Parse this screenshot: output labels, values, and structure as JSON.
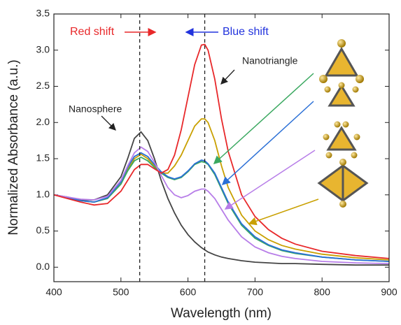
{
  "chart_data": {
    "type": "line",
    "xlabel": "Wavelength (nm)",
    "ylabel": "Normalized Absorbance (a.u.)",
    "annotations": [
      "Red shift",
      "Blue shift",
      "Nanotriangle",
      "Nanosphere"
    ],
    "vlines": [
      528,
      625
    ],
    "xlim": [
      400,
      900
    ],
    "xticks": [
      400,
      500,
      600,
      700,
      800,
      900
    ],
    "ylim": [
      -0.2,
      3.5
    ],
    "yticks": [
      {
        "value": 0,
        "label": "0.0"
      },
      0.5,
      {
        "value": 1,
        "label": "1.0"
      },
      1.5,
      {
        "value": 2,
        "label": "2.0"
      },
      2.5,
      {
        "value": 3,
        "label": "3.0"
      },
      3.5
    ],
    "x": [
      400,
      420,
      440,
      460,
      480,
      500,
      510,
      520,
      530,
      540,
      550,
      560,
      570,
      580,
      590,
      600,
      610,
      620,
      625,
      630,
      640,
      650,
      660,
      680,
      700,
      720,
      740,
      760,
      800,
      850,
      900
    ],
    "series": [
      {
        "color": "#444444",
        "values": [
          1.0,
          0.97,
          0.93,
          0.93,
          1.0,
          1.25,
          1.5,
          1.78,
          1.87,
          1.75,
          1.5,
          1.2,
          0.95,
          0.75,
          0.58,
          0.45,
          0.35,
          0.27,
          0.24,
          0.21,
          0.17,
          0.14,
          0.12,
          0.09,
          0.07,
          0.06,
          0.05,
          0.05,
          0.04,
          0.03,
          0.03
        ]
      },
      {
        "color": "#c9a000",
        "values": [
          1.0,
          0.96,
          0.92,
          0.9,
          0.95,
          1.15,
          1.35,
          1.5,
          1.56,
          1.5,
          1.4,
          1.3,
          1.3,
          1.4,
          1.55,
          1.75,
          1.95,
          2.05,
          2.05,
          2.0,
          1.75,
          1.4,
          1.1,
          0.72,
          0.5,
          0.38,
          0.3,
          0.25,
          0.18,
          0.13,
          0.1
        ]
      },
      {
        "color": "#3aa860",
        "values": [
          1.0,
          0.96,
          0.92,
          0.9,
          0.95,
          1.15,
          1.33,
          1.47,
          1.52,
          1.47,
          1.38,
          1.3,
          1.24,
          1.21,
          1.24,
          1.32,
          1.42,
          1.46,
          1.45,
          1.42,
          1.28,
          1.08,
          0.88,
          0.58,
          0.4,
          0.3,
          0.23,
          0.19,
          0.14,
          0.1,
          0.08
        ]
      },
      {
        "color": "#2a6fd6",
        "values": [
          1.0,
          0.96,
          0.92,
          0.9,
          0.96,
          1.18,
          1.38,
          1.53,
          1.58,
          1.53,
          1.42,
          1.32,
          1.25,
          1.22,
          1.25,
          1.33,
          1.43,
          1.48,
          1.47,
          1.43,
          1.3,
          1.1,
          0.9,
          0.6,
          0.42,
          0.31,
          0.24,
          0.2,
          0.14,
          0.1,
          0.08
        ]
      },
      {
        "color": "#b77de8",
        "values": [
          1.0,
          0.97,
          0.94,
          0.93,
          0.98,
          1.2,
          1.4,
          1.58,
          1.66,
          1.6,
          1.45,
          1.27,
          1.1,
          1.0,
          0.96,
          0.99,
          1.05,
          1.08,
          1.08,
          1.05,
          0.95,
          0.8,
          0.65,
          0.42,
          0.28,
          0.2,
          0.15,
          0.12,
          0.08,
          0.06,
          0.05
        ]
      },
      {
        "color": "#e8282a",
        "values": [
          1.0,
          0.95,
          0.9,
          0.86,
          0.88,
          1.05,
          1.2,
          1.35,
          1.42,
          1.42,
          1.36,
          1.3,
          1.35,
          1.55,
          1.9,
          2.35,
          2.8,
          3.07,
          3.08,
          3.0,
          2.6,
          2.05,
          1.6,
          1.0,
          0.7,
          0.52,
          0.4,
          0.32,
          0.22,
          0.16,
          0.12
        ]
      }
    ]
  }
}
